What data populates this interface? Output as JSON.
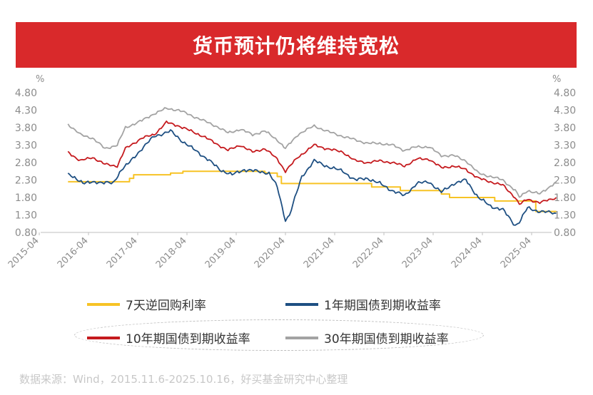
{
  "title": "货币预计仍将维持宽松",
  "source": "数据来源：Wind，2015.11.6-2025.10.16，好买基金研究中心整理",
  "chart_data": {
    "type": "line",
    "title": "货币预计仍将维持宽松",
    "yunit_left": "%",
    "yunit_right": "%",
    "ylim": [
      0.8,
      4.8
    ],
    "yticks": [
      "4.80",
      "4.30",
      "3.80",
      "3.30",
      "2.80",
      "2.30",
      "1.80",
      "1.30",
      "0.80"
    ],
    "xticks": [
      "2015-04",
      "2016-04",
      "2017-04",
      "2018-04",
      "2019-04",
      "2020-04",
      "2021-04",
      "2022-04",
      "2023-04",
      "2024-04",
      "2025-04"
    ],
    "x_range": [
      "2015-04",
      "2025-10"
    ],
    "series": [
      {
        "name": "7天逆回购利率",
        "color": "#f7c325",
        "x": [
          "2015-11",
          "2016-12",
          "2017-02",
          "2017-03",
          "2017-12",
          "2018-03",
          "2019-11",
          "2020-02",
          "2020-03",
          "2022-01",
          "2022-08",
          "2023-06",
          "2023-08",
          "2024-05",
          "2024-07",
          "2025-05",
          "2025-10"
        ],
        "values": [
          2.25,
          2.25,
          2.35,
          2.45,
          2.5,
          2.55,
          2.5,
          2.4,
          2.2,
          2.1,
          2.0,
          1.9,
          1.8,
          1.8,
          1.7,
          1.4,
          1.4
        ]
      },
      {
        "name": "1年期国债到期收益率",
        "color": "#1e4f82",
        "x": [
          "2015-11",
          "2016-01",
          "2016-03",
          "2016-06",
          "2016-10",
          "2016-12",
          "2017-02",
          "2017-05",
          "2017-08",
          "2017-12",
          "2018-03",
          "2018-06",
          "2018-09",
          "2018-12",
          "2019-03",
          "2019-06",
          "2019-09",
          "2019-12",
          "2020-02",
          "2020-04",
          "2020-05",
          "2020-08",
          "2020-11",
          "2021-02",
          "2021-06",
          "2021-09",
          "2021-12",
          "2022-03",
          "2022-06",
          "2022-09",
          "2022-12",
          "2023-03",
          "2023-06",
          "2023-09",
          "2023-12",
          "2024-03",
          "2024-06",
          "2024-09",
          "2024-12",
          "2025-01",
          "2025-03",
          "2025-06",
          "2025-10"
        ],
        "values": [
          2.45,
          2.35,
          2.2,
          2.25,
          2.2,
          2.6,
          2.8,
          3.2,
          3.55,
          3.7,
          3.4,
          3.15,
          2.9,
          2.6,
          2.45,
          2.6,
          2.55,
          2.5,
          2.1,
          1.15,
          1.3,
          2.4,
          2.85,
          2.7,
          2.55,
          2.3,
          2.35,
          2.2,
          2.0,
          1.85,
          2.2,
          2.25,
          1.95,
          2.2,
          2.3,
          1.8,
          1.55,
          1.45,
          1.0,
          1.1,
          1.5,
          1.4,
          1.35
        ]
      },
      {
        "name": "10年期国债到期收益率",
        "color": "#c51a1e",
        "x": [
          "2015-11",
          "2016-02",
          "2016-05",
          "2016-08",
          "2016-11",
          "2017-01",
          "2017-05",
          "2017-08",
          "2017-11",
          "2018-02",
          "2018-05",
          "2018-08",
          "2018-11",
          "2019-02",
          "2019-05",
          "2019-08",
          "2019-11",
          "2020-02",
          "2020-04",
          "2020-07",
          "2020-11",
          "2021-02",
          "2021-06",
          "2021-09",
          "2021-12",
          "2022-03",
          "2022-06",
          "2022-09",
          "2022-12",
          "2023-03",
          "2023-06",
          "2023-09",
          "2023-12",
          "2024-03",
          "2024-06",
          "2024-09",
          "2024-12",
          "2025-01",
          "2025-03",
          "2025-06",
          "2025-10"
        ],
        "values": [
          3.1,
          2.85,
          2.95,
          2.75,
          2.7,
          3.2,
          3.5,
          3.6,
          3.95,
          3.85,
          3.7,
          3.55,
          3.35,
          3.15,
          3.3,
          3.1,
          3.2,
          2.9,
          2.55,
          2.95,
          3.3,
          3.2,
          3.1,
          2.85,
          2.8,
          2.85,
          2.8,
          2.7,
          2.9,
          2.9,
          2.65,
          2.7,
          2.6,
          2.35,
          2.25,
          2.15,
          1.8,
          1.6,
          1.75,
          1.65,
          1.8
        ]
      },
      {
        "name": "30年期国债到期收益率",
        "color": "#a3a3a3",
        "x": [
          "2015-11",
          "2016-02",
          "2016-05",
          "2016-08",
          "2016-11",
          "2017-01",
          "2017-05",
          "2017-08",
          "2017-11",
          "2018-02",
          "2018-05",
          "2018-08",
          "2018-11",
          "2019-02",
          "2019-05",
          "2019-08",
          "2019-11",
          "2020-02",
          "2020-04",
          "2020-07",
          "2020-11",
          "2021-02",
          "2021-06",
          "2021-09",
          "2021-12",
          "2022-03",
          "2022-06",
          "2022-09",
          "2022-12",
          "2023-03",
          "2023-06",
          "2023-09",
          "2023-12",
          "2024-03",
          "2024-06",
          "2024-09",
          "2024-12",
          "2025-01",
          "2025-03",
          "2025-06",
          "2025-10"
        ],
        "values": [
          3.9,
          3.6,
          3.5,
          3.2,
          3.3,
          3.8,
          4.0,
          4.2,
          4.35,
          4.3,
          4.15,
          4.0,
          3.85,
          3.65,
          3.75,
          3.6,
          3.7,
          3.45,
          3.2,
          3.6,
          3.85,
          3.7,
          3.55,
          3.45,
          3.35,
          3.35,
          3.3,
          3.15,
          3.25,
          3.25,
          3.0,
          3.0,
          2.85,
          2.5,
          2.4,
          2.3,
          2.0,
          1.8,
          2.0,
          1.9,
          2.25
        ]
      }
    ],
    "legend": [
      "7天逆回购利率",
      "1年期国债到期收益率",
      "10年期国债到期收益率",
      "30年期国债到期收益率"
    ],
    "legend_position": "bottom",
    "grid": false
  }
}
